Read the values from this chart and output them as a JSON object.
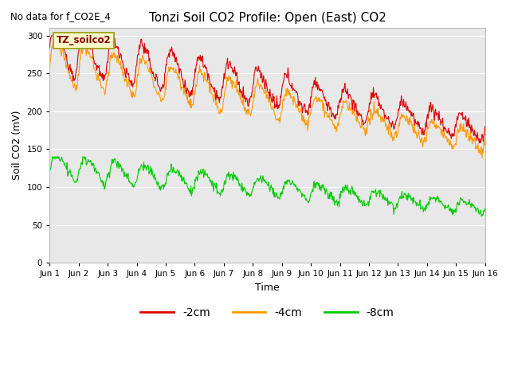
{
  "title": "Tonzi Soil CO2 Profile: Open (East) CO2",
  "subtitle": "No data for f_CO2E_4",
  "ylabel": "Soil CO2 (mV)",
  "xlabel": "Time",
  "box_label": "TZ_soilco2",
  "ylim": [
    0,
    310
  ],
  "yticks": [
    0,
    50,
    100,
    150,
    200,
    250,
    300
  ],
  "legend_labels": [
    "-2cm",
    "-4cm",
    "-8cm"
  ],
  "legend_colors": [
    "#dd0000",
    "#ff9900",
    "#00cc00"
  ],
  "line_colors": [
    "#dd0000",
    "#ff9900",
    "#00cc00"
  ],
  "background_color": "#e8e8e8",
  "xtick_labels": [
    "Jun 1",
    "Jun 2",
    "Jun 3",
    "Jun 4",
    "Jun 5",
    "Jun 6",
    "Jun 7",
    "Jun 8",
    "Jun 9",
    "Jun 10",
    "Jun 11",
    "Jun 12",
    "Jun 13",
    "Jun 14",
    "Jun 15",
    "Jun 16"
  ],
  "num_points": 750,
  "figsize": [
    6.4,
    4.8
  ],
  "dpi": 100
}
